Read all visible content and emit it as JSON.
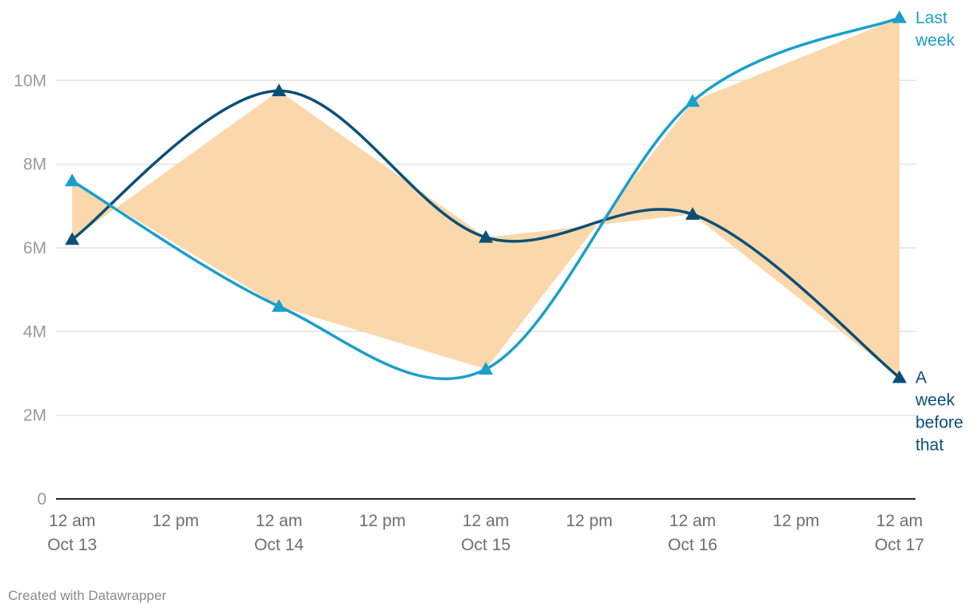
{
  "chart_data": {
    "type": "line",
    "x": [
      "Oct 13 12 am",
      "Oct 14 12 am",
      "Oct 15 12 am",
      "Oct 16 12 am",
      "Oct 17 12 am"
    ],
    "x_ticks": [
      {
        "line1": "12 am",
        "line2": "Oct 13"
      },
      {
        "line1": "12 pm",
        "line2": ""
      },
      {
        "line1": "12 am",
        "line2": "Oct 14"
      },
      {
        "line1": "12 pm",
        "line2": ""
      },
      {
        "line1": "12 am",
        "line2": "Oct 15"
      },
      {
        "line1": "12 pm",
        "line2": ""
      },
      {
        "line1": "12 am",
        "line2": "Oct 16"
      },
      {
        "line1": "12 pm",
        "line2": ""
      },
      {
        "line1": "12 am",
        "line2": "Oct 17"
      }
    ],
    "y_ticks": [
      {
        "value": 0,
        "label": "0"
      },
      {
        "value": 2000000,
        "label": "2M"
      },
      {
        "value": 4000000,
        "label": "4M"
      },
      {
        "value": 6000000,
        "label": "6M"
      },
      {
        "value": 8000000,
        "label": "8M"
      },
      {
        "value": 10000000,
        "label": "10M"
      }
    ],
    "ylim": [
      0,
      11500000
    ],
    "grid": true,
    "series": [
      {
        "name": "Last week",
        "label_lines": [
          "Last",
          "week"
        ],
        "color": "#1a9fcb",
        "values": [
          7600000,
          4600000,
          3100000,
          9500000,
          11500000
        ]
      },
      {
        "name": "A week before that",
        "label_lines": [
          "A",
          "week",
          "before",
          "that"
        ],
        "color": "#0b4f77",
        "values": [
          6200000,
          9750000,
          6250000,
          6800000,
          2900000
        ]
      }
    ],
    "difference_fill_color": "#fad8ac"
  },
  "credit": "Created with Datawrapper"
}
